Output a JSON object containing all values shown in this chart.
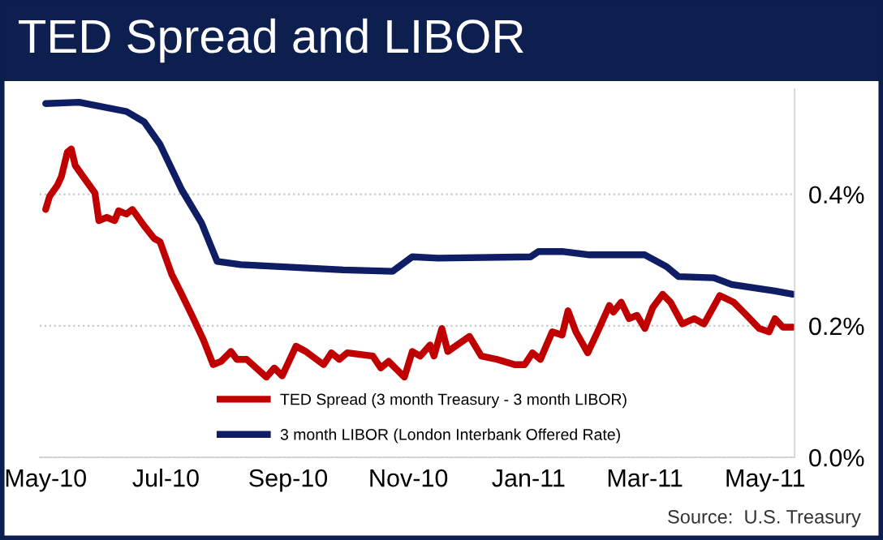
{
  "chart_data": {
    "type": "line",
    "title": "TED Spread and LIBOR",
    "xlim": [
      "2010-04-28",
      "2011-05-16"
    ],
    "ylim": [
      0,
      0.56
    ],
    "xticks": [
      {
        "value": "2010-05-01",
        "label": "May-10"
      },
      {
        "value": "2010-07-01",
        "label": "Jul-10"
      },
      {
        "value": "2010-09-01",
        "label": "Sep-10"
      },
      {
        "value": "2010-11-01",
        "label": "Nov-10"
      },
      {
        "value": "2011-01-01",
        "label": "Jan-11"
      },
      {
        "value": "2011-03-01",
        "label": "Mar-11"
      },
      {
        "value": "2011-05-01",
        "label": "May-11"
      }
    ],
    "yticks": [
      {
        "value": 0,
        "label": "0.0%"
      },
      {
        "value": 0.2,
        "label": "0.2%"
      },
      {
        "value": 0.4,
        "label": "0.4%"
      }
    ],
    "grid": "y",
    "legend": "bottom left",
    "marker": "none",
    "line_style": "solid",
    "annotations": [
      "Source:  U.S. Treasury"
    ],
    "series": [
      {
        "name": "TED Spread (3 month Treasury - 3 month LIBOR)",
        "color": "#c00000",
        "x": [
          "2010-05-01",
          "2010-05-03",
          "2010-05-07",
          "2010-05-09",
          "2010-05-12",
          "2010-05-14",
          "2010-05-16",
          "2010-05-20",
          "2010-05-26",
          "2010-05-28",
          "2010-06-01",
          "2010-06-05",
          "2010-06-07",
          "2010-06-11",
          "2010-06-14",
          "2010-06-20",
          "2010-06-25",
          "2010-06-28",
          "2010-07-04",
          "2010-07-09",
          "2010-07-15",
          "2010-07-20",
          "2010-07-25",
          "2010-07-29",
          "2010-08-03",
          "2010-08-06",
          "2010-08-11",
          "2010-08-21",
          "2010-08-25",
          "2010-08-29",
          "2010-09-05",
          "2010-09-10",
          "2010-09-19",
          "2010-09-23",
          "2010-09-27",
          "2010-10-01",
          "2010-10-14",
          "2010-10-18",
          "2010-10-22",
          "2010-10-30",
          "2010-11-03",
          "2010-11-07",
          "2010-11-12",
          "2010-11-14",
          "2010-11-18",
          "2010-11-21",
          "2010-12-02",
          "2010-12-08",
          "2010-12-16",
          "2010-12-25",
          "2010-12-30",
          "2011-01-03",
          "2011-01-07",
          "2011-01-13",
          "2011-01-18",
          "2011-01-21",
          "2011-01-25",
          "2011-01-31",
          "2011-02-05",
          "2011-02-11",
          "2011-02-13",
          "2011-02-17",
          "2011-02-21",
          "2011-02-25",
          "2011-03-01",
          "2011-03-05",
          "2011-03-10",
          "2011-03-14",
          "2011-03-20",
          "2011-03-26",
          "2011-03-31",
          "2011-04-08",
          "2011-04-15",
          "2011-04-20",
          "2011-04-28",
          "2011-05-03",
          "2011-05-06",
          "2011-05-10",
          "2011-05-15"
        ],
        "values": [
          0.377,
          0.397,
          0.414,
          0.427,
          0.464,
          0.469,
          0.444,
          0.427,
          0.402,
          0.36,
          0.365,
          0.36,
          0.375,
          0.37,
          0.377,
          0.352,
          0.333,
          0.328,
          0.278,
          0.248,
          0.211,
          0.179,
          0.141,
          0.146,
          0.161,
          0.149,
          0.149,
          0.122,
          0.136,
          0.124,
          0.169,
          0.161,
          0.141,
          0.159,
          0.149,
          0.159,
          0.154,
          0.136,
          0.146,
          0.122,
          0.161,
          0.154,
          0.171,
          0.154,
          0.196,
          0.161,
          0.184,
          0.154,
          0.149,
          0.141,
          0.141,
          0.159,
          0.149,
          0.191,
          0.186,
          0.223,
          0.191,
          0.159,
          0.191,
          0.231,
          0.221,
          0.236,
          0.211,
          0.216,
          0.196,
          0.228,
          0.248,
          0.236,
          0.203,
          0.211,
          0.203,
          0.246,
          0.236,
          0.221,
          0.196,
          0.191,
          0.211,
          0.198,
          0.198
        ]
      },
      {
        "name": "3 month LIBOR (London Interbank Offered Rate)",
        "color": "#0f1e64",
        "x": [
          "2010-05-01",
          "2010-05-18",
          "2010-06-11",
          "2010-06-20",
          "2010-06-28",
          "2010-07-09",
          "2010-07-19",
          "2010-07-27",
          "2010-08-08",
          "2010-09-29",
          "2010-10-24",
          "2010-11-03",
          "2010-11-16",
          "2011-01-02",
          "2011-01-06",
          "2011-01-18",
          "2011-02-01",
          "2011-03-01",
          "2011-03-12",
          "2011-03-18",
          "2011-04-05",
          "2011-04-14",
          "2011-05-06",
          "2011-05-15"
        ],
        "values": [
          0.538,
          0.54,
          0.526,
          0.51,
          0.476,
          0.407,
          0.357,
          0.298,
          0.293,
          0.285,
          0.283,
          0.305,
          0.303,
          0.305,
          0.313,
          0.313,
          0.308,
          0.308,
          0.29,
          0.275,
          0.273,
          0.263,
          0.253,
          0.248
        ]
      }
    ]
  }
}
